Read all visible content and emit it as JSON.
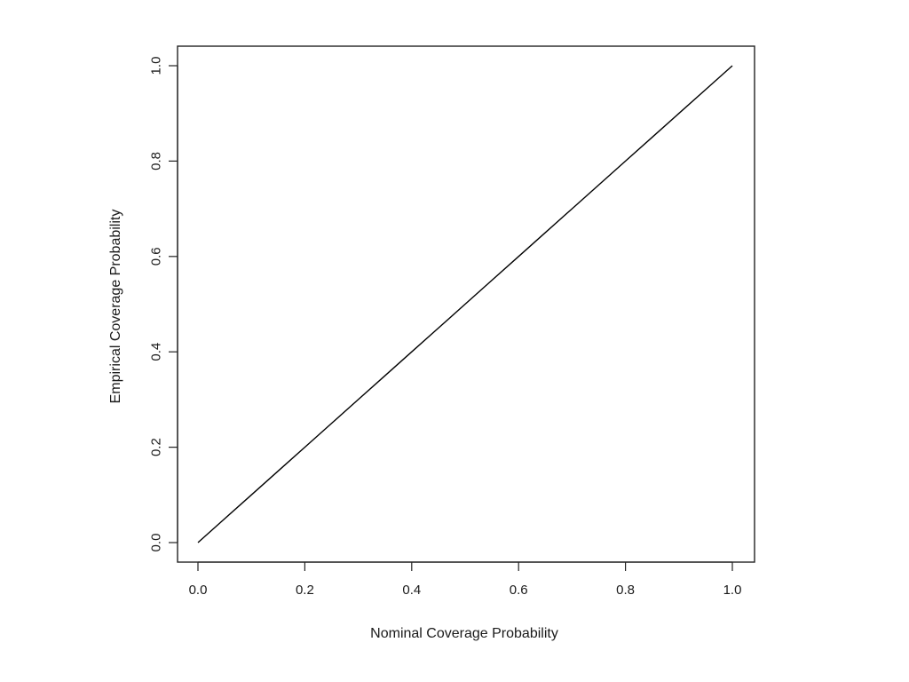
{
  "chart_data": {
    "type": "line",
    "title": "",
    "xlabel": "Nominal Coverage Probability",
    "ylabel": "Empirical Coverage Probability",
    "xlim": [
      0.0,
      1.0
    ],
    "ylim": [
      0.0,
      1.0
    ],
    "x_ticks": [
      "0.0",
      "0.2",
      "0.4",
      "0.6",
      "0.8",
      "1.0"
    ],
    "y_ticks": [
      "0.0",
      "0.2",
      "0.4",
      "0.6",
      "0.8",
      "1.0"
    ],
    "grid": false,
    "legend": "none",
    "series": [
      {
        "color": "#000000",
        "x": [
          0.0,
          0.05,
          0.1,
          0.15,
          0.2,
          0.25,
          0.3,
          0.35,
          0.4,
          0.45,
          0.5,
          0.55,
          0.6,
          0.65,
          0.7,
          0.75,
          0.8,
          0.85,
          0.9,
          0.95,
          1.0
        ],
        "y": [
          0.0,
          0.05,
          0.1,
          0.15,
          0.2,
          0.25,
          0.3,
          0.35,
          0.4,
          0.45,
          0.5,
          0.55,
          0.6,
          0.65,
          0.7,
          0.75,
          0.8,
          0.85,
          0.9,
          0.95,
          1.0
        ]
      }
    ]
  }
}
